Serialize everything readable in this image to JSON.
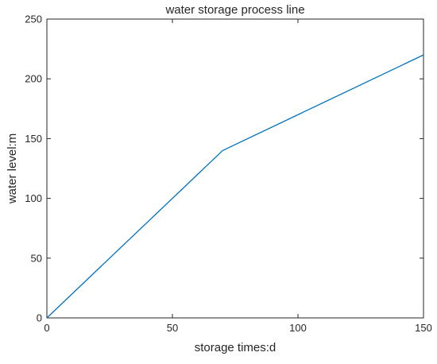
{
  "chart_data": {
    "type": "line",
    "title": "water storage process line",
    "xlabel": "storage times:d",
    "ylabel": "water level:m",
    "xlim": [
      0,
      150
    ],
    "ylim": [
      0,
      250
    ],
    "xticks": [
      "0",
      "50",
      "100",
      "150"
    ],
    "yticks": [
      "0",
      "50",
      "100",
      "150",
      "200",
      "250"
    ],
    "grid": false,
    "series": [
      {
        "x": [
          0,
          70,
          150
        ],
        "y": [
          0,
          140,
          220
        ]
      }
    ],
    "colors": {
      "line": "#0072BD",
      "axes": "#262626",
      "background": "#ffffff"
    }
  }
}
